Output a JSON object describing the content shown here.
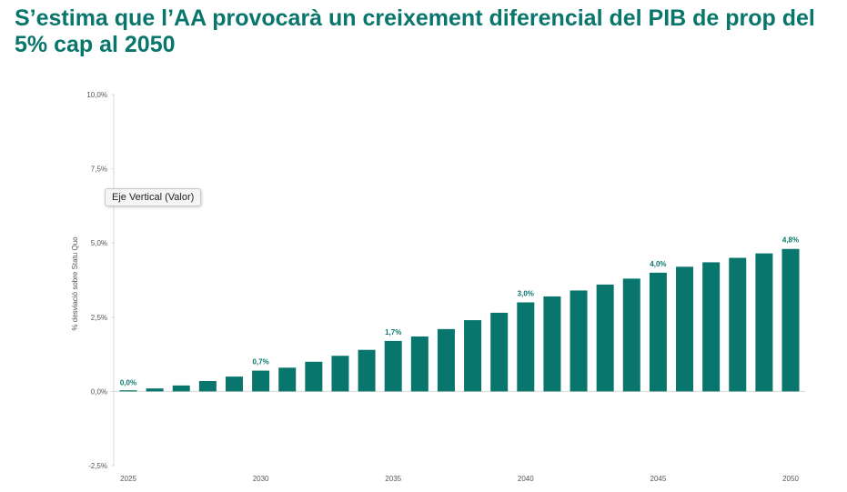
{
  "title": "S’estima que l’AA provocarà un creixement diferencial del PIB de prop del 5% cap al 2050",
  "tooltip": "Eje Vertical (Valor)",
  "colors": {
    "accent": "#08766c",
    "bar": "#08766c",
    "axis": "#d9d9d9",
    "text": "#555555"
  },
  "chart_data": {
    "type": "bar",
    "title": "S’estima que l’AA provocarà un creixement diferencial del PIB de prop del 5% cap al 2050",
    "xlabel": "",
    "ylabel": "% desviació sobre Statu Quo",
    "ylim": [
      -2.5,
      10.0
    ],
    "yticks": [
      -2.5,
      0.0,
      2.5,
      5.0,
      7.5,
      10.0
    ],
    "ytick_labels": [
      "-2,5%",
      "0,0%",
      "2,5%",
      "5,0%",
      "7,5%",
      "10,0%"
    ],
    "categories": [
      2025,
      2026,
      2027,
      2028,
      2029,
      2030,
      2031,
      2032,
      2033,
      2034,
      2035,
      2036,
      2037,
      2038,
      2039,
      2040,
      2041,
      2042,
      2043,
      2044,
      2045,
      2046,
      2047,
      2048,
      2049,
      2050
    ],
    "xtick_labels": [
      "2025",
      "2030",
      "2035",
      "2040",
      "2045",
      "2050"
    ],
    "values": [
      0.0,
      0.1,
      0.2,
      0.35,
      0.5,
      0.7,
      0.8,
      1.0,
      1.2,
      1.4,
      1.7,
      1.85,
      2.1,
      2.4,
      2.65,
      3.0,
      3.2,
      3.4,
      3.6,
      3.8,
      4.0,
      4.2,
      4.35,
      4.5,
      4.65,
      4.8
    ],
    "data_labels": [
      {
        "year": 2025,
        "text": "0,0%"
      },
      {
        "year": 2030,
        "text": "0,7%"
      },
      {
        "year": 2035,
        "text": "1,7%"
      },
      {
        "year": 2040,
        "text": "3,0%"
      },
      {
        "year": 2045,
        "text": "4,0%"
      },
      {
        "year": 2050,
        "text": "4,8%"
      }
    ],
    "grid": false,
    "legend": "none"
  }
}
